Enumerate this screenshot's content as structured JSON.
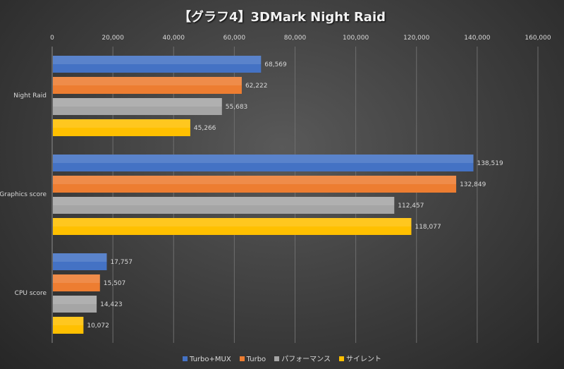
{
  "chart_data": {
    "type": "bar",
    "orientation": "horizontal",
    "title": "【グラフ4】3DMark Night Raid",
    "categories": [
      "Night Raid",
      "Graphics score",
      "CPU score"
    ],
    "xlim": [
      0,
      160000
    ],
    "ticks": [
      "0",
      "20,000",
      "40,000",
      "60,000",
      "80,000",
      "100,000",
      "120,000",
      "140,000",
      "160,000"
    ],
    "tick_values": [
      0,
      20000,
      40000,
      60000,
      80000,
      100000,
      120000,
      140000,
      160000
    ],
    "grid": true,
    "axis_position": "top",
    "legend_position": "bottom",
    "series": [
      {
        "name": "Turbo+MUX",
        "color": "#4472c4",
        "values": [
          68569,
          138519,
          17757
        ],
        "labels": [
          "68,569",
          "138,519",
          "17,757"
        ]
      },
      {
        "name": "Turbo",
        "color": "#ed7d31",
        "values": [
          62222,
          132849,
          15507
        ],
        "labels": [
          "62,222",
          "132,849",
          "15,507"
        ]
      },
      {
        "name": "パフォーマンス",
        "color": "#a5a5a5",
        "values": [
          55683,
          112457,
          14423
        ],
        "labels": [
          "55,683",
          "112,457",
          "14,423"
        ]
      },
      {
        "name": "サイレント",
        "color": "#ffc000",
        "values": [
          45266,
          118077,
          10072
        ],
        "labels": [
          "45,266",
          "118,077",
          "10,072"
        ]
      }
    ]
  }
}
